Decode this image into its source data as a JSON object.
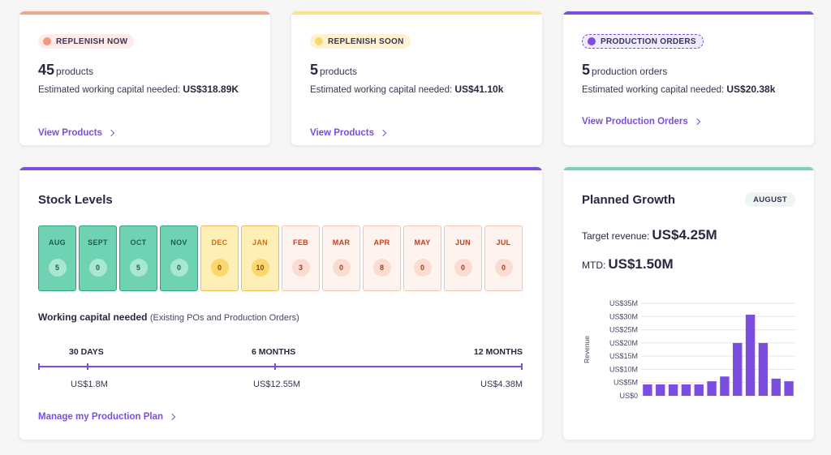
{
  "cards": [
    {
      "status_label": "REPLENISH NOW",
      "count": "45",
      "unit": "products",
      "capital_prefix": "Estimated working capital needed:",
      "capital_value": "US$318.89K",
      "link": "View Products",
      "accent": "#f5a48e"
    },
    {
      "status_label": "REPLENISH SOON",
      "count": "5",
      "unit": "products",
      "capital_prefix": "Estimated working capital needed:",
      "capital_value": "US$41.10k",
      "link": "View Products",
      "accent": "#fbe38a"
    },
    {
      "status_label": "PRODUCTION ORDERS",
      "count": "5",
      "unit": "production orders",
      "capital_prefix": "Estimated working capital needed:",
      "capital_value": "US$20.38k",
      "link": "View Production Orders",
      "accent": "#7b4ee0"
    }
  ],
  "stock": {
    "title": "Stock Levels",
    "months": [
      {
        "name": "AUG",
        "value": "5",
        "status": "green"
      },
      {
        "name": "SEPT",
        "value": "0",
        "status": "green"
      },
      {
        "name": "OCT",
        "value": "5",
        "status": "green"
      },
      {
        "name": "NOV",
        "value": "0",
        "status": "green"
      },
      {
        "name": "DEC",
        "value": "0",
        "status": "yellow"
      },
      {
        "name": "JAN",
        "value": "10",
        "status": "yellow"
      },
      {
        "name": "FEB",
        "value": "3",
        "status": "red"
      },
      {
        "name": "MAR",
        "value": "0",
        "status": "red"
      },
      {
        "name": "APR",
        "value": "8",
        "status": "red"
      },
      {
        "name": "MAY",
        "value": "0",
        "status": "red"
      },
      {
        "name": "JUN",
        "value": "0",
        "status": "red"
      },
      {
        "name": "JUL",
        "value": "0",
        "status": "red"
      }
    ],
    "working_capital_label": "Working capital needed",
    "working_capital_note": "(Existing POs and Production Orders)",
    "timeline": [
      {
        "label": "30 DAYS",
        "value": "US$1.8M"
      },
      {
        "label": "6 MONTHS",
        "value": "US$12.55M"
      },
      {
        "label": "12 MONTHS",
        "value": "US$4.38M"
      }
    ],
    "link": "Manage my Production Plan"
  },
  "growth": {
    "title": "Planned Growth",
    "badge": "AUGUST",
    "target_label": "Target revenue:",
    "target_value": "US$4.25M",
    "mtd_label": "MTD:",
    "mtd_value": "US$1.50M",
    "bar_color": "#7b4ee0"
  },
  "chart_data": {
    "type": "bar",
    "ylabel": "Revenue",
    "xlabel": "",
    "ylim": [
      0,
      35
    ],
    "y_ticks": [
      "US$0",
      "US$5M",
      "US$10M",
      "US$15M",
      "US$20M",
      "US$25M",
      "US$30M",
      "US$35M"
    ],
    "y_tick_values": [
      0,
      5,
      10,
      15,
      20,
      25,
      30,
      35
    ],
    "values": [
      4.3,
      4.3,
      4.3,
      4.3,
      4.3,
      5.5,
      7.3,
      20.0,
      30.7,
      20.0,
      6.5,
      5.5
    ],
    "grid": true
  }
}
